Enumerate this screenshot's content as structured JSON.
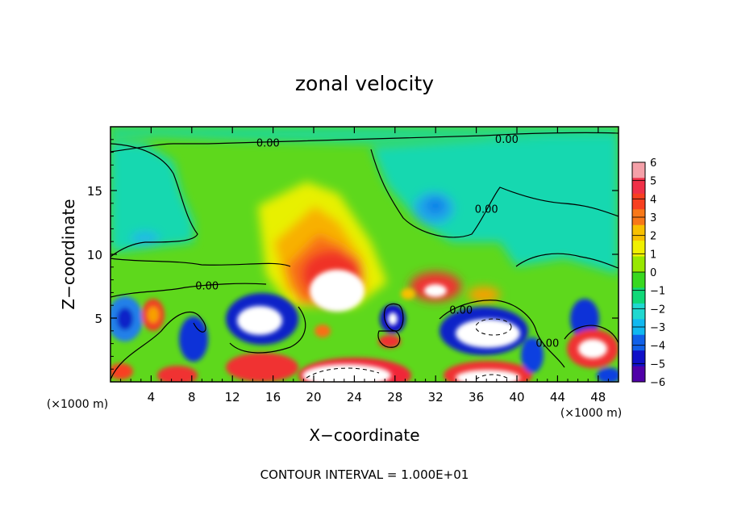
{
  "chart_data": {
    "type": "heatmap",
    "title": "zonal velocity",
    "xlabel": "X−coordinate",
    "ylabel": "Z−coordinate",
    "x_units": "(×1000 m)",
    "y_units": "(×1000 m)",
    "xlim": [
      0,
      50
    ],
    "ylim": [
      0,
      20
    ],
    "x_ticks": [
      4,
      8,
      12,
      16,
      20,
      24,
      28,
      32,
      36,
      40,
      44,
      48
    ],
    "y_ticks": [
      5,
      10,
      15
    ],
    "colorbar": {
      "ticks": [
        "6",
        "5",
        "4",
        "3",
        "2",
        "1",
        "0",
        "−1",
        "−2",
        "−3",
        "−4",
        "−5",
        "−6"
      ],
      "colors": [
        "#f4a0a8",
        "#f03048",
        "#f84020",
        "#f87818",
        "#f8c000",
        "#f0f000",
        "#98e800",
        "#38d820",
        "#10d878",
        "#20d8d0",
        "#10b8f0",
        "#1060e8",
        "#1010c8",
        "#5000a8"
      ]
    },
    "contour_labels": [
      {
        "text": "0.00",
        "x": 15.5,
        "z": 18.7
      },
      {
        "text": "0.00",
        "x": 39.0,
        "z": 19.0
      },
      {
        "text": "0.00",
        "x": 37.0,
        "z": 13.5
      },
      {
        "text": "0.00",
        "x": 9.5,
        "z": 7.5
      },
      {
        "text": "0.00",
        "x": 34.5,
        "z": 5.6
      },
      {
        "text": "0.00",
        "x": 43.0,
        "z": 3.0
      }
    ],
    "footer": "CONTOUR INTERVAL = 1.000E+01"
  }
}
